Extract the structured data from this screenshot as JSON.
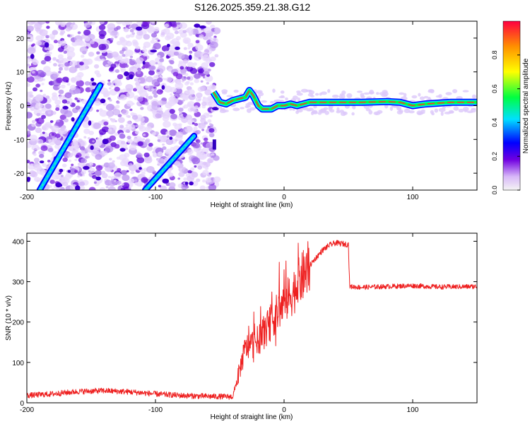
{
  "title": "S126.2025.359.21.38.G12",
  "chart_data": [
    {
      "type": "heatmap",
      "xlabel": "Height of straight line (km)",
      "ylabel": "Frequency (Hz)",
      "xlim": [
        -200,
        150
      ],
      "ylim": [
        -25,
        25
      ],
      "xticks": [
        -200,
        -100,
        0,
        100
      ],
      "yticks": [
        -20,
        -10,
        0,
        10,
        20
      ],
      "colorbar": {
        "label": "Normalized spectral amplitude",
        "range": [
          0.0,
          1.0
        ],
        "ticks": [
          "0.0",
          "0.2",
          "0.4",
          "0.6",
          "0.8"
        ],
        "colormap": [
          "#f0f0f0",
          "#d8b8f8",
          "#7000e0",
          "#0000ff",
          "#00e0ff",
          "#00ff40",
          "#ffff00",
          "#ff9000",
          "#ff0040"
        ]
      },
      "features": [
        {
          "name": "diagonal streak 1",
          "from": [
            -190,
            -25
          ],
          "to": [
            -143,
            6
          ]
        },
        {
          "name": "diagonal streak 2",
          "from": [
            -108,
            -25
          ],
          "to": [
            -70,
            -9
          ]
        },
        {
          "name": "steady carrier",
          "x_range": [
            -55,
            150
          ],
          "frequency_hz": 1
        }
      ]
    },
    {
      "type": "line",
      "xlabel": "Height of straight line (km)",
      "ylabel": "SNR (10 * v/v)",
      "xlim": [
        -200,
        150
      ],
      "ylim": [
        0,
        420
      ],
      "xticks": [
        -200,
        -100,
        0,
        100
      ],
      "yticks": [
        0,
        100,
        200,
        300,
        400
      ],
      "color": "#ee2020",
      "series": [
        {
          "name": "SNR",
          "x": [
            -200,
            -180,
            -160,
            -140,
            -120,
            -100,
            -80,
            -60,
            -40,
            -37,
            -33,
            -30,
            -25,
            -20,
            -15,
            -10,
            -5,
            0,
            5,
            10,
            15,
            20,
            25,
            30,
            35,
            40,
            45,
            50,
            51,
            60,
            80,
            100,
            120,
            150
          ],
          "values": [
            18,
            22,
            28,
            30,
            27,
            22,
            18,
            16,
            15,
            50,
            100,
            135,
            145,
            155,
            175,
            200,
            225,
            245,
            265,
            290,
            315,
            340,
            360,
            378,
            390,
            396,
            394,
            392,
            288,
            286,
            288,
            290,
            287,
            288
          ]
        }
      ]
    }
  ]
}
